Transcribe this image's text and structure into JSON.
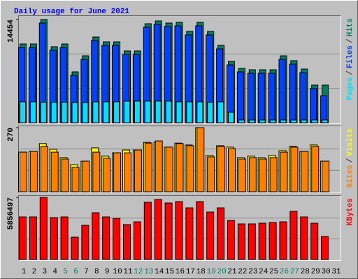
{
  "title": "Daily usage for June 2021",
  "legend_separator": "/",
  "chart_data": [
    {
      "type": "bar",
      "ylim": [
        0,
        14454
      ],
      "yticks": [
        14454
      ],
      "series": [
        {
          "name": "Hits",
          "color": "#008060",
          "values": [
            11036,
            11036,
            14454,
            10645,
            11036,
            7129,
            9375,
            12012,
            11329,
            11329,
            10059,
            10059,
            13868,
            14258,
            13965,
            14063,
            12794,
            14063,
            12794,
            10840,
            8594,
            7617,
            7422,
            7422,
            7422,
            9375,
            8692,
            7520,
            5274,
            5274,
            null
          ]
        },
        {
          "name": "Files",
          "color": "#0040ff",
          "values": [
            10546,
            10546,
            13964,
            10155,
            10546,
            6639,
            8885,
            11522,
            10839,
            10839,
            9569,
            9569,
            13378,
            13768,
            13475,
            13573,
            12304,
            13573,
            12304,
            10350,
            8104,
            7127,
            6932,
            6932,
            6932,
            8885,
            8202,
            7030,
            4784,
            3784,
            null
          ]
        },
        {
          "name": "Pages",
          "color": "#00e0ff",
          "values": [
            2930,
            2930,
            2880,
            2880,
            2880,
            2830,
            2830,
            2930,
            2930,
            2930,
            3030,
            3030,
            3030,
            3030,
            3030,
            2930,
            2930,
            2930,
            2880,
            2930,
            1465,
            390,
            390,
            390,
            390,
            390,
            390,
            390,
            390,
            390,
            null
          ]
        }
      ]
    },
    {
      "type": "bar",
      "ylim": [
        0,
        270
      ],
      "yticks": [
        270
      ],
      "series": [
        {
          "name": "Visits",
          "color": "#ffff00",
          "values": [
            167,
            170,
            203,
            179,
            144,
            114,
            129,
            185,
            150,
            164,
            176,
            176,
            208,
            208,
            188,
            205,
            197,
            270,
            153,
            194,
            188,
            144,
            150,
            144,
            153,
            173,
            191,
            170,
            197,
            129,
            null
          ]
        },
        {
          "name": "Sites",
          "color": "#ff8000",
          "values": [
            167,
            170,
            191,
            167,
            138,
            103,
            129,
            167,
            141,
            164,
            164,
            176,
            205,
            214,
            188,
            203,
            194,
            270,
            147,
            191,
            182,
            138,
            144,
            138,
            144,
            167,
            188,
            170,
            191,
            129,
            null
          ]
        }
      ]
    },
    {
      "type": "bar",
      "ylim": [
        0,
        5856497
      ],
      "yticks": [
        5856497
      ],
      "categories": [
        "1",
        "2",
        "3",
        "4",
        "5",
        "6",
        "7",
        "8",
        "9",
        "10",
        "11",
        "12",
        "13",
        "14",
        "15",
        "16",
        "17",
        "18",
        "19",
        "20",
        "21",
        "22",
        "23",
        "24",
        "25",
        "26",
        "27",
        "28",
        "29",
        "30",
        "31"
      ],
      "highlighted": [
        4,
        5,
        11,
        12,
        18,
        19,
        25,
        26
      ],
      "highlight_color": "#008060",
      "series": [
        {
          "name": "KBytes",
          "color": "#ff0000",
          "values": [
            4013983,
            4013983,
            5856497,
            3948180,
            4013983,
            2105696,
            3224347,
            4408801,
            4013983,
            3882377,
            3290150,
            3553362,
            5395846,
            5659058,
            5330043,
            5461649,
            4869422,
            5461649,
            4474604,
            4869422,
            3684968,
            3355953,
            3355953,
            3421756,
            3487559,
            3553362,
            4540407,
            4013983,
            3421756,
            2171499,
            null
          ]
        }
      ]
    }
  ]
}
